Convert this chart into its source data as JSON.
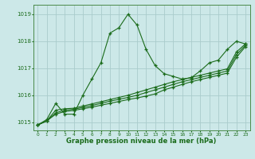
{
  "xlabel": "Graphe pression niveau de la mer (hPa)",
  "background_color": "#cce8e8",
  "line_color": "#1a6b1a",
  "grid_color": "#aacccc",
  "xlim": [
    -0.5,
    23.5
  ],
  "ylim": [
    1014.7,
    1019.35
  ],
  "yticks": [
    1015,
    1016,
    1017,
    1018,
    1019
  ],
  "xticks": [
    0,
    1,
    2,
    3,
    4,
    5,
    6,
    7,
    8,
    9,
    10,
    11,
    12,
    13,
    14,
    15,
    16,
    17,
    18,
    19,
    20,
    21,
    22,
    23
  ],
  "series": [
    [
      1014.9,
      1015.1,
      1015.7,
      1015.3,
      1015.3,
      1016.0,
      1016.6,
      1017.2,
      1018.3,
      1018.5,
      1019.0,
      1018.6,
      1017.7,
      1017.1,
      1016.8,
      1016.7,
      1016.6,
      1016.65,
      1016.9,
      1017.2,
      1017.3,
      1017.7,
      1018.0,
      1017.9
    ],
    [
      1014.9,
      1015.05,
      1015.45,
      1015.5,
      1015.52,
      1015.6,
      1015.68,
      1015.76,
      1015.84,
      1015.92,
      1016.0,
      1016.1,
      1016.2,
      1016.3,
      1016.4,
      1016.5,
      1016.58,
      1016.66,
      1016.74,
      1016.82,
      1016.9,
      1016.98,
      1017.6,
      1017.9
    ],
    [
      1014.9,
      1015.05,
      1015.35,
      1015.45,
      1015.48,
      1015.55,
      1015.62,
      1015.7,
      1015.78,
      1015.85,
      1015.92,
      1016.0,
      1016.1,
      1016.2,
      1016.3,
      1016.4,
      1016.5,
      1016.58,
      1016.66,
      1016.74,
      1016.82,
      1016.9,
      1017.5,
      1017.85
    ],
    [
      1014.9,
      1015.05,
      1015.3,
      1015.4,
      1015.44,
      1015.5,
      1015.56,
      1015.63,
      1015.7,
      1015.77,
      1015.84,
      1015.9,
      1015.97,
      1016.05,
      1016.2,
      1016.3,
      1016.4,
      1016.5,
      1016.58,
      1016.66,
      1016.74,
      1016.82,
      1017.4,
      1017.8
    ]
  ]
}
